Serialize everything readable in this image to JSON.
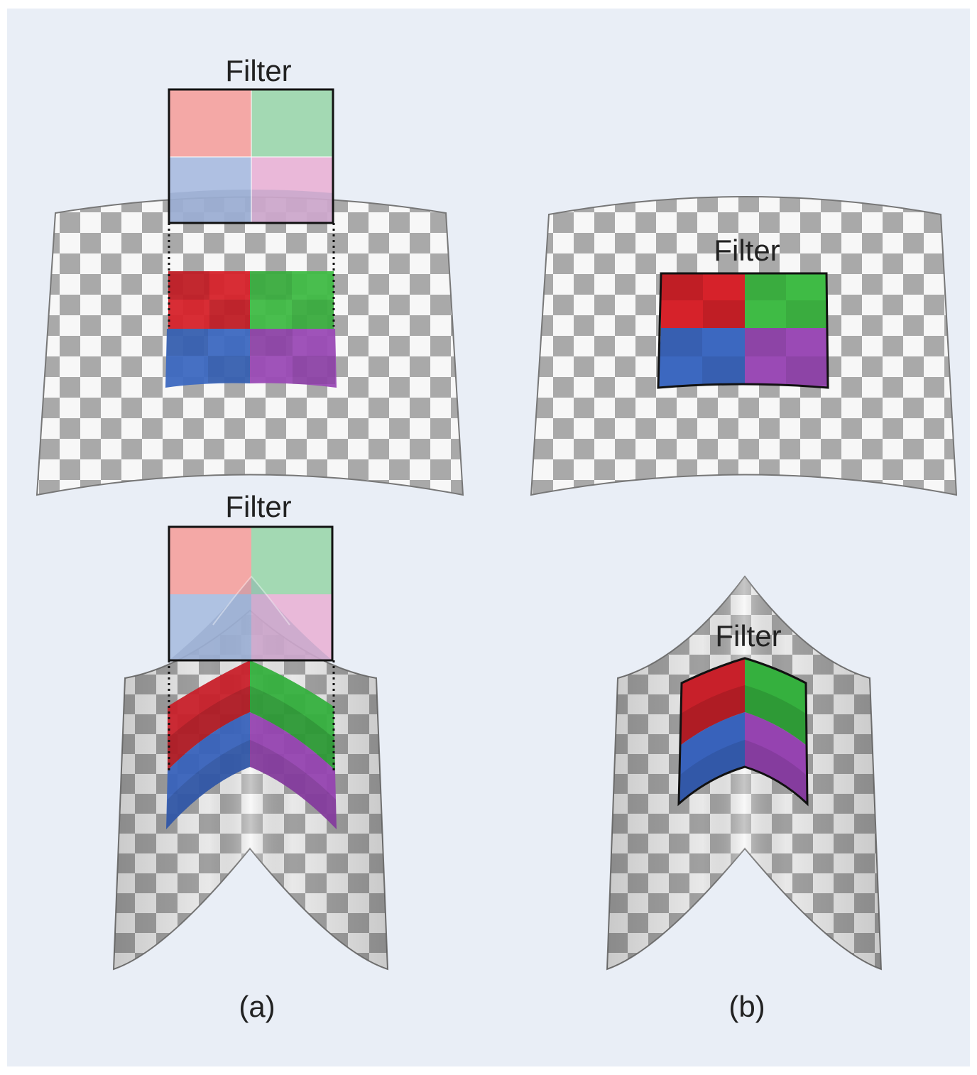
{
  "figure": {
    "labels": {
      "filter_a_top": "Filter",
      "filter_b_top": "Filter",
      "filter_a_bottom": "Filter",
      "filter_b_bottom": "Filter",
      "caption_a": "(a)",
      "caption_b": "(b)"
    },
    "colors": {
      "background": "#e9eef6",
      "checker_dark": "#a9a9a9",
      "checker_light": "#f7f7f7",
      "red": "#d6222a",
      "green": "#3fbb45",
      "blue": "#3c68c0",
      "purple": "#9a4ab5",
      "filter_red": "#f4a8a6",
      "filter_green": "#a3d9b3",
      "filter_blue": "#a9bce0",
      "filter_pink": "#e9b3d6"
    }
  }
}
